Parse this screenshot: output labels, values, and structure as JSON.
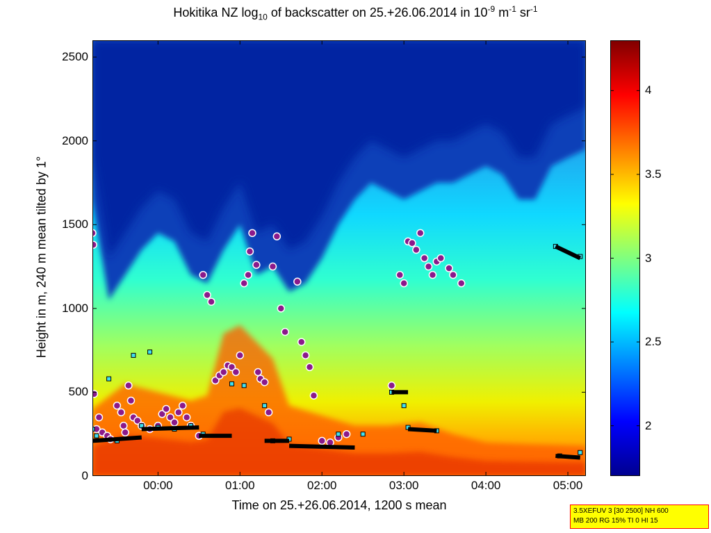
{
  "chart_data": {
    "type": "heatmap",
    "title": {
      "pre": "Hokitika NZ log",
      "sub": "10",
      "mid": " of backscatter on 25.+26.06.2014 in 10",
      "sup1": "-9",
      "mid2": " m",
      "sup2": "-1",
      "mid3": " sr",
      "sup3": "-1"
    },
    "xlabel": "Time on 25.+26.06.2014, 1200 s mean",
    "ylabel": "Height in m, 240 m mean tilted by 1°",
    "x_unit": "hours relative to 00:00 on 26.06.2014",
    "xlim": [
      -0.8,
      5.22
    ],
    "ylim": [
      0,
      2600
    ],
    "xticks": [
      {
        "value": 0,
        "label": "00:00"
      },
      {
        "value": 1,
        "label": "01:00"
      },
      {
        "value": 2,
        "label": "02:00"
      },
      {
        "value": 3,
        "label": "03:00"
      },
      {
        "value": 4,
        "label": "04:00"
      },
      {
        "value": 5,
        "label": "05:00"
      }
    ],
    "yticks": [
      {
        "value": 0,
        "label": "0"
      },
      {
        "value": 500,
        "label": "500"
      },
      {
        "value": 1000,
        "label": "1000"
      },
      {
        "value": 1500,
        "label": "1500"
      },
      {
        "value": 2000,
        "label": "2000"
      },
      {
        "value": 2500,
        "label": "2500"
      }
    ],
    "colorbar": {
      "range": [
        1.7,
        4.3
      ],
      "colormap": "jet",
      "ticks": [
        {
          "value": 2,
          "label": "2"
        },
        {
          "value": 2.5,
          "label": "2.5"
        },
        {
          "value": 3,
          "label": "3"
        },
        {
          "value": 3.5,
          "label": "3.5"
        },
        {
          "value": 4,
          "label": "4"
        }
      ]
    },
    "clear_top_height": [
      [
        -0.8,
        1650
      ],
      [
        -0.6,
        1050
      ],
      [
        -0.4,
        1200
      ],
      [
        -0.2,
        1350
      ],
      [
        0.0,
        1450
      ],
      [
        0.2,
        1400
      ],
      [
        0.4,
        1200
      ],
      [
        0.6,
        1150
      ],
      [
        0.8,
        1350
      ],
      [
        1.0,
        1500
      ],
      [
        1.2,
        1200
      ],
      [
        1.4,
        1250
      ],
      [
        1.6,
        1100
      ],
      [
        1.8,
        1150
      ],
      [
        2.0,
        1300
      ],
      [
        2.2,
        1500
      ],
      [
        2.4,
        1650
      ],
      [
        2.6,
        1750
      ],
      [
        2.8,
        1700
      ],
      [
        3.0,
        1650
      ],
      [
        3.2,
        1700
      ],
      [
        3.4,
        1750
      ],
      [
        3.6,
        1750
      ],
      [
        3.8,
        1800
      ],
      [
        4.0,
        1850
      ],
      [
        4.2,
        1800
      ],
      [
        4.4,
        1650
      ],
      [
        4.6,
        1650
      ],
      [
        4.8,
        1850
      ],
      [
        5.0,
        1900
      ],
      [
        5.22,
        1950
      ]
    ],
    "red_layer_top": [
      [
        -0.8,
        400
      ],
      [
        -0.4,
        550
      ],
      [
        0.0,
        500
      ],
      [
        0.4,
        450
      ],
      [
        0.6,
        480
      ],
      [
        0.8,
        850
      ],
      [
        1.0,
        900
      ],
      [
        1.2,
        800
      ],
      [
        1.4,
        700
      ],
      [
        1.6,
        420
      ],
      [
        2.0,
        360
      ],
      [
        2.4,
        300
      ],
      [
        2.8,
        300
      ],
      [
        3.2,
        320
      ],
      [
        3.6,
        250
      ],
      [
        4.0,
        200
      ],
      [
        4.5,
        190
      ],
      [
        5.22,
        180
      ]
    ],
    "series": [
      {
        "name": "cloud base",
        "color": "#8b1a8b",
        "points": [
          [
            -0.8,
            1450
          ],
          [
            -0.79,
            1380
          ],
          [
            -0.78,
            490
          ],
          [
            -0.75,
            280
          ],
          [
            -0.72,
            350
          ],
          [
            -0.68,
            260
          ],
          [
            -0.62,
            240
          ],
          [
            -0.58,
            220
          ],
          [
            -0.5,
            420
          ],
          [
            -0.45,
            380
          ],
          [
            -0.42,
            300
          ],
          [
            -0.4,
            260
          ],
          [
            -0.36,
            540
          ],
          [
            -0.33,
            450
          ],
          [
            -0.3,
            350
          ],
          [
            -0.25,
            330
          ],
          [
            -0.2,
            300
          ],
          [
            -0.1,
            280
          ],
          [
            0.0,
            300
          ],
          [
            0.05,
            370
          ],
          [
            0.1,
            400
          ],
          [
            0.15,
            350
          ],
          [
            0.2,
            320
          ],
          [
            0.25,
            380
          ],
          [
            0.3,
            420
          ],
          [
            0.35,
            350
          ],
          [
            0.4,
            300
          ],
          [
            0.5,
            240
          ],
          [
            0.55,
            1200
          ],
          [
            0.6,
            1080
          ],
          [
            0.65,
            1040
          ],
          [
            0.7,
            570
          ],
          [
            0.75,
            600
          ],
          [
            0.8,
            620
          ],
          [
            0.85,
            660
          ],
          [
            0.9,
            650
          ],
          [
            0.95,
            620
          ],
          [
            1.0,
            720
          ],
          [
            1.05,
            1150
          ],
          [
            1.1,
            1200
          ],
          [
            1.12,
            1340
          ],
          [
            1.15,
            1450
          ],
          [
            1.2,
            1260
          ],
          [
            1.22,
            620
          ],
          [
            1.25,
            580
          ],
          [
            1.3,
            560
          ],
          [
            1.35,
            380
          ],
          [
            1.4,
            1250
          ],
          [
            1.45,
            1430
          ],
          [
            1.5,
            1000
          ],
          [
            1.55,
            860
          ],
          [
            1.7,
            1160
          ],
          [
            1.75,
            800
          ],
          [
            1.8,
            720
          ],
          [
            1.85,
            650
          ],
          [
            1.9,
            480
          ],
          [
            2.0,
            210
          ],
          [
            2.1,
            200
          ],
          [
            2.2,
            230
          ],
          [
            2.3,
            250
          ],
          [
            2.85,
            540
          ],
          [
            2.95,
            1200
          ],
          [
            3.0,
            1150
          ],
          [
            3.05,
            1400
          ],
          [
            3.1,
            1390
          ],
          [
            3.15,
            1350
          ],
          [
            3.2,
            1450
          ],
          [
            3.25,
            1300
          ],
          [
            3.3,
            1250
          ],
          [
            3.35,
            1200
          ],
          [
            3.4,
            1280
          ],
          [
            3.45,
            1300
          ],
          [
            3.55,
            1240
          ],
          [
            3.6,
            1200
          ],
          [
            3.7,
            1150
          ]
        ]
      },
      {
        "name": "lowest layer",
        "color": "#40e0f0",
        "points": [
          [
            -0.8,
            280
          ],
          [
            -0.75,
            240
          ],
          [
            -0.6,
            580
          ],
          [
            -0.5,
            210
          ],
          [
            -0.3,
            720
          ],
          [
            -0.2,
            300
          ],
          [
            -0.1,
            740
          ],
          [
            0.0,
            290
          ],
          [
            0.2,
            280
          ],
          [
            0.4,
            300
          ],
          [
            0.55,
            250
          ],
          [
            0.9,
            550
          ],
          [
            1.05,
            540
          ],
          [
            1.3,
            420
          ],
          [
            1.4,
            210
          ],
          [
            1.6,
            220
          ],
          [
            2.2,
            250
          ],
          [
            2.5,
            250
          ],
          [
            2.85,
            500
          ],
          [
            3.0,
            420
          ],
          [
            3.05,
            290
          ],
          [
            3.4,
            270
          ],
          [
            4.85,
            1370
          ],
          [
            5.15,
            1310
          ],
          [
            4.9,
            120
          ],
          [
            5.15,
            140
          ]
        ]
      },
      {
        "name": "thick layer",
        "color": "#000000",
        "segments": [
          [
            [
              -0.8,
              210
            ],
            [
              -0.2,
              230
            ]
          ],
          [
            [
              -0.2,
              280
            ],
            [
              0.5,
              290
            ]
          ],
          [
            [
              0.5,
              240
            ],
            [
              0.9,
              240
            ]
          ],
          [
            [
              1.3,
              210
            ],
            [
              1.6,
              210
            ]
          ],
          [
            [
              1.6,
              180
            ],
            [
              2.4,
              170
            ]
          ],
          [
            [
              2.85,
              500
            ],
            [
              3.05,
              500
            ]
          ],
          [
            [
              3.05,
              280
            ],
            [
              3.4,
              270
            ]
          ],
          [
            [
              4.85,
              1370
            ],
            [
              5.15,
              1300
            ]
          ],
          [
            [
              4.85,
              120
            ],
            [
              5.15,
              110
            ]
          ]
        ]
      }
    ]
  },
  "info_box": {
    "line1": "3.5XEFUV 3 [30 2500] NH 600",
    "line2": "MB 200 RG 15% TI 0 HI 15"
  }
}
